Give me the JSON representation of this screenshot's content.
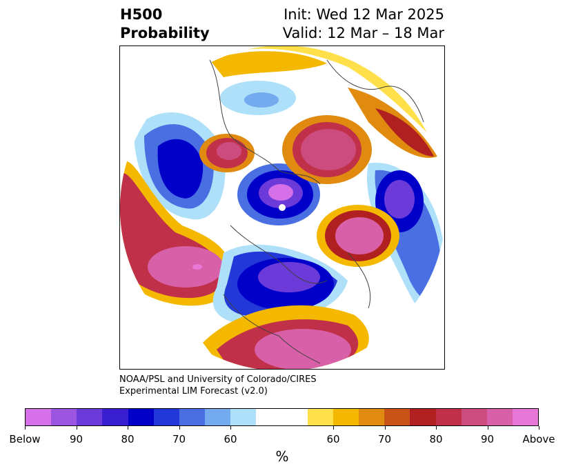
{
  "header": {
    "title_line1": "H500",
    "title_line2": "Probability",
    "init": "Init: Wed 12 Mar 2025",
    "valid": "Valid: 12 Mar – 18 Mar"
  },
  "credit": {
    "line1": "NOAA/PSL and University of Colorado/CIRES",
    "line2": "Experimental LIM Forecast (v2.0)"
  },
  "colorbar": {
    "colors": [
      "#d670e8",
      "#9b55e0",
      "#6b3ad8",
      "#3a1fd0",
      "#0000c8",
      "#2238d8",
      "#4a6fe2",
      "#74abee",
      "#aee0fa",
      "#ffffff",
      "#ffffff",
      "#ffe04a",
      "#f4b800",
      "#e08a10",
      "#c85418",
      "#b02020",
      "#c03048",
      "#cc4c80",
      "#d860a8",
      "#e878d8"
    ],
    "ticks": [
      "Below",
      "90",
      "80",
      "70",
      "60",
      "60",
      "70",
      "80",
      "90",
      "Above"
    ],
    "label": "%"
  }
}
